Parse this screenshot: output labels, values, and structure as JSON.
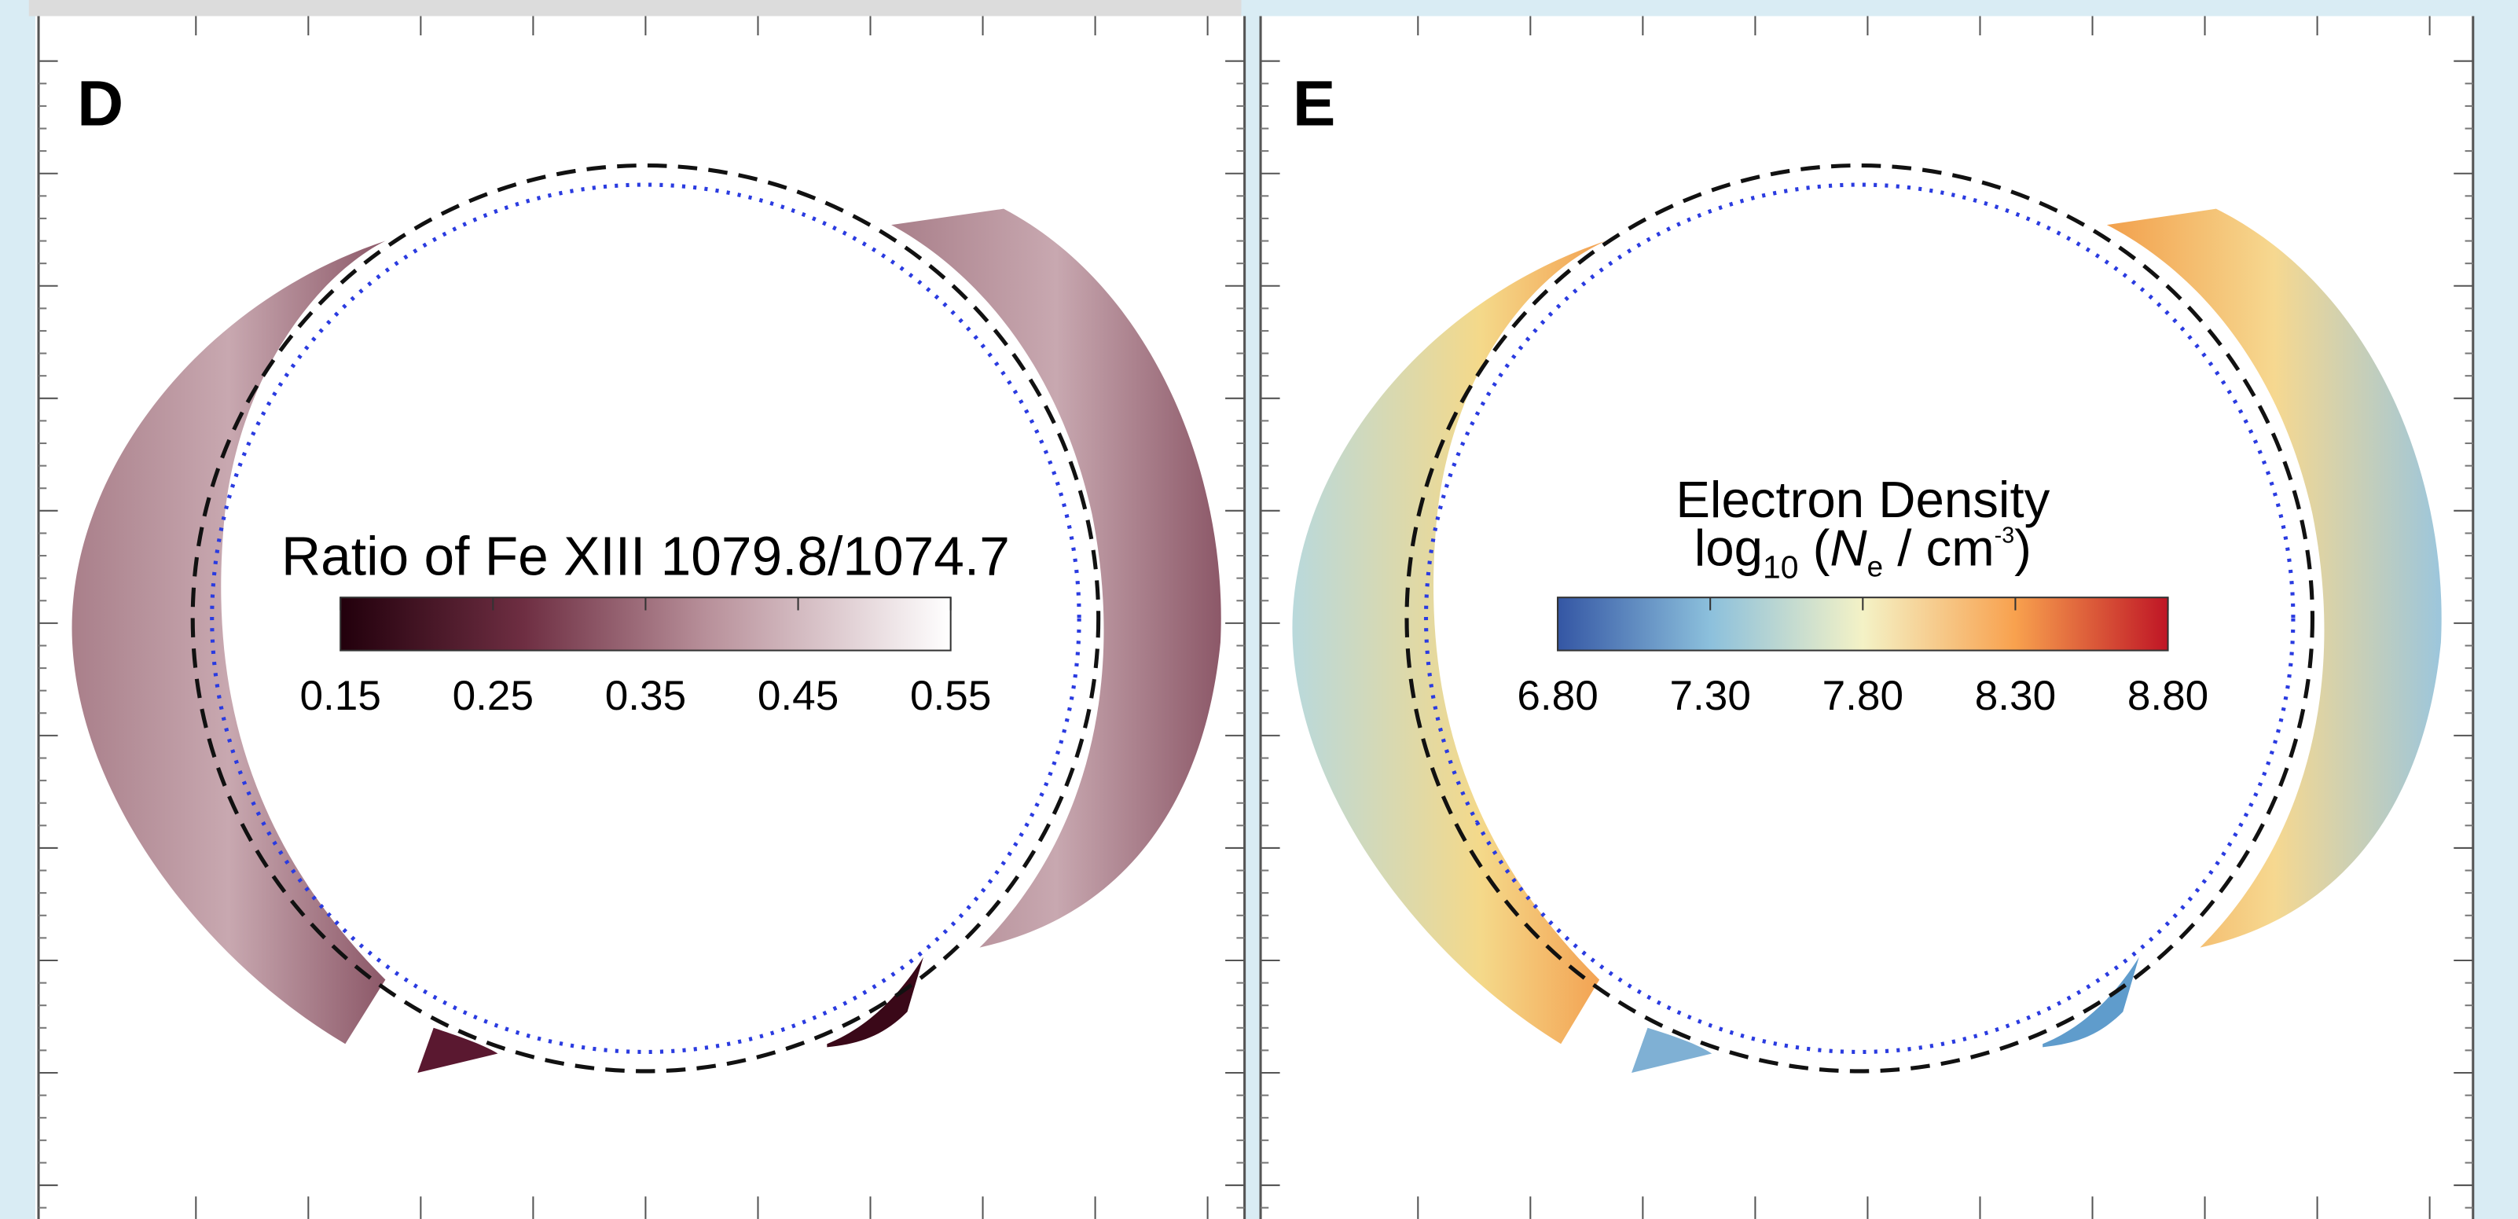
{
  "panels": [
    {
      "label": "D",
      "colorbar_title": "Ratio of Fe XIII 1079.8/1074.7",
      "colorbar_ticks": [
        "0.15",
        "0.25",
        "0.35",
        "0.45",
        "0.55"
      ]
    },
    {
      "label": "E",
      "colorbar_title": "Electron Density",
      "colorbar_subtitle": {
        "base": "log",
        "base_sub": "10",
        "open": " (",
        "symbol": "N",
        "symbol_sub": "e",
        "unit": " / cm",
        "unit_sup": "-3",
        "close": ")"
      },
      "colorbar_ticks": [
        "6.80",
        "7.30",
        "7.80",
        "8.30",
        "8.80"
      ]
    }
  ]
}
